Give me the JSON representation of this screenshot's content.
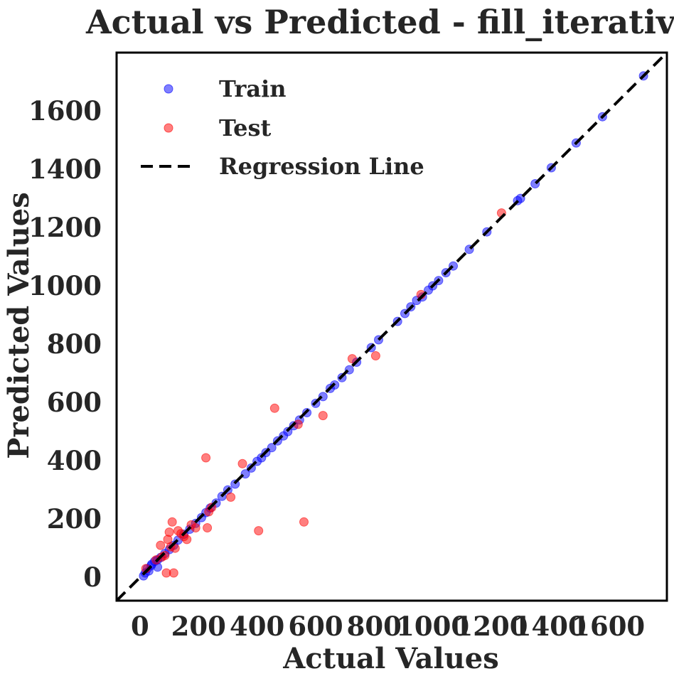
{
  "chart_data": {
    "type": "scatter",
    "title": "Actual vs Predicted - fill_iterative",
    "xlabel": "Actual Values",
    "ylabel": "Predicted Values",
    "xlim": [
      -80,
      1800
    ],
    "ylim": [
      -80,
      1800
    ],
    "xticks": [
      0,
      200,
      400,
      600,
      800,
      1000,
      1200,
      1400,
      1600
    ],
    "yticks": [
      0,
      200,
      400,
      600,
      800,
      1000,
      1200,
      1400,
      1600
    ],
    "grid": false,
    "legend_position": "top-left",
    "series": [
      {
        "name": "Train",
        "color": "#0000ff",
        "points": [
          [
            12,
            5
          ],
          [
            18,
            15
          ],
          [
            25,
            30
          ],
          [
            30,
            22
          ],
          [
            40,
            45
          ],
          [
            50,
            55
          ],
          [
            60,
            60
          ],
          [
            70,
            68
          ],
          [
            85,
            82
          ],
          [
            100,
            95
          ],
          [
            115,
            110
          ],
          [
            130,
            128
          ],
          [
            150,
            148
          ],
          [
            170,
            165
          ],
          [
            190,
            185
          ],
          [
            210,
            205
          ],
          [
            225,
            222
          ],
          [
            240,
            238
          ],
          [
            260,
            255
          ],
          [
            280,
            278
          ],
          [
            300,
            300
          ],
          [
            325,
            320
          ],
          [
            360,
            355
          ],
          [
            380,
            375
          ],
          [
            400,
            398
          ],
          [
            415,
            410
          ],
          [
            430,
            428
          ],
          [
            450,
            445
          ],
          [
            470,
            468
          ],
          [
            490,
            485
          ],
          [
            505,
            500
          ],
          [
            525,
            520
          ],
          [
            545,
            540
          ],
          [
            570,
            565
          ],
          [
            600,
            597
          ],
          [
            625,
            620
          ],
          [
            650,
            648
          ],
          [
            665,
            660
          ],
          [
            690,
            685
          ],
          [
            715,
            712
          ],
          [
            740,
            738
          ],
          [
            790,
            788
          ],
          [
            815,
            815
          ],
          [
            880,
            878
          ],
          [
            905,
            905
          ],
          [
            925,
            928
          ],
          [
            945,
            950
          ],
          [
            965,
            962
          ],
          [
            985,
            985
          ],
          [
            1000,
            1000
          ],
          [
            1020,
            1018
          ],
          [
            1045,
            1045
          ],
          [
            1070,
            1068
          ],
          [
            1125,
            1125
          ],
          [
            1185,
            1185
          ],
          [
            1290,
            1292
          ],
          [
            1300,
            1300
          ],
          [
            1350,
            1350
          ],
          [
            1405,
            1405
          ],
          [
            1490,
            1490
          ],
          [
            1580,
            1580
          ],
          [
            1720,
            1720
          ],
          [
            60,
            35
          ],
          [
            38,
            40
          ]
        ]
      },
      {
        "name": "Test",
        "color": "#ff0000",
        "points": [
          [
            20,
            30
          ],
          [
            55,
            60
          ],
          [
            70,
            110
          ],
          [
            75,
            70
          ],
          [
            85,
            75
          ],
          [
            90,
            15
          ],
          [
            95,
            130
          ],
          [
            100,
            155
          ],
          [
            105,
            105
          ],
          [
            110,
            190
          ],
          [
            115,
            15
          ],
          [
            120,
            100
          ],
          [
            130,
            160
          ],
          [
            140,
            150
          ],
          [
            150,
            140
          ],
          [
            160,
            130
          ],
          [
            175,
            180
          ],
          [
            190,
            170
          ],
          [
            225,
            410
          ],
          [
            230,
            170
          ],
          [
            235,
            225
          ],
          [
            245,
            240
          ],
          [
            310,
            275
          ],
          [
            350,
            390
          ],
          [
            405,
            160
          ],
          [
            460,
            580
          ],
          [
            540,
            525
          ],
          [
            560,
            190
          ],
          [
            625,
            555
          ],
          [
            725,
            750
          ],
          [
            805,
            760
          ],
          [
            960,
            970
          ],
          [
            1235,
            1250
          ]
        ]
      },
      {
        "name": "Regression Line",
        "color": "#000000",
        "points": [
          [
            -80,
            -80
          ],
          [
            1800,
            1800
          ]
        ]
      }
    ]
  }
}
